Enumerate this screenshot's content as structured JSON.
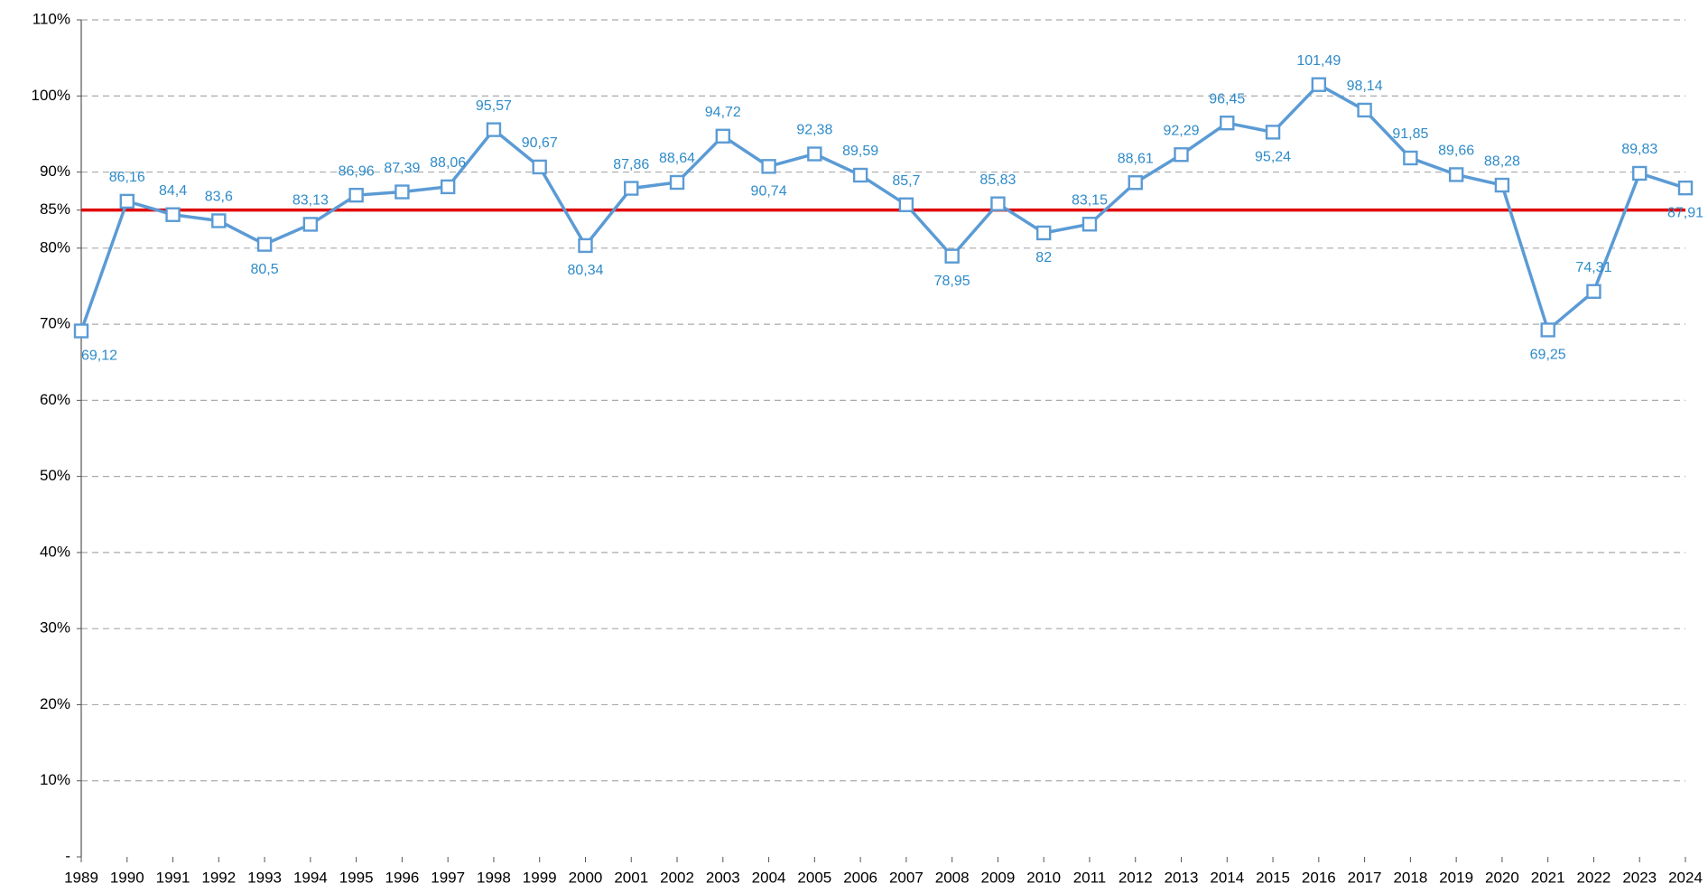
{
  "chart_data": {
    "type": "line",
    "categories": [
      "1989",
      "1990",
      "1991",
      "1992",
      "1993",
      "1994",
      "1995",
      "1996",
      "1997",
      "1998",
      "1999",
      "2000",
      "2001",
      "2002",
      "2003",
      "2004",
      "2005",
      "2006",
      "2007",
      "2008",
      "2009",
      "2010",
      "2011",
      "2012",
      "2013",
      "2014",
      "2015",
      "2016",
      "2017",
      "2018",
      "2019",
      "2020",
      "2021",
      "2022",
      "2023",
      "2024"
    ],
    "series": [
      {
        "color": "#5b9bd5",
        "values": [
          69.12,
          86.16,
          84.4,
          83.6,
          80.5,
          83.13,
          86.96,
          87.39,
          88.06,
          95.57,
          90.67,
          80.34,
          87.86,
          88.64,
          94.72,
          90.74,
          92.38,
          89.59,
          85.7,
          78.95,
          85.83,
          82,
          83.15,
          88.61,
          92.29,
          96.45,
          95.24,
          101.49,
          98.14,
          91.85,
          89.66,
          88.28,
          69.25,
          74.31,
          89.83,
          87.91
        ],
        "value_labels": [
          "69,12",
          "86,16",
          "84,4",
          "83,6",
          "80,5",
          "83,13",
          "86,96",
          "87,39",
          "88,06",
          "95,57",
          "90,67",
          "80,34",
          "87,86",
          "88,64",
          "94,72",
          "90,74",
          "92,38",
          "89,59",
          "85,7",
          "78,95",
          "85,83",
          "82",
          "83,15",
          "88,61",
          "92,29",
          "96,45",
          "95,24",
          "101,49",
          "98,14",
          "91,85",
          "89,66",
          "88,28",
          "69,25",
          "74,31",
          "89,83",
          "87,91"
        ]
      }
    ],
    "ylim": [
      0,
      110
    ],
    "yticks": [
      {
        "value": 0,
        "label": "-"
      },
      {
        "value": 10,
        "label": "10%"
      },
      {
        "value": 20,
        "label": "20%"
      },
      {
        "value": 30,
        "label": "30%"
      },
      {
        "value": 40,
        "label": "40%"
      },
      {
        "value": 50,
        "label": "50%"
      },
      {
        "value": 60,
        "label": "60%"
      },
      {
        "value": 70,
        "label": "70%"
      },
      {
        "value": 80,
        "label": "80%"
      },
      {
        "value": 85,
        "label": "85%"
      },
      {
        "value": 90,
        "label": "90%"
      },
      {
        "value": 100,
        "label": "100%"
      },
      {
        "value": 110,
        "label": "110%"
      }
    ],
    "grid": true,
    "reference_line": {
      "value": 85,
      "color": "#e00000"
    }
  }
}
